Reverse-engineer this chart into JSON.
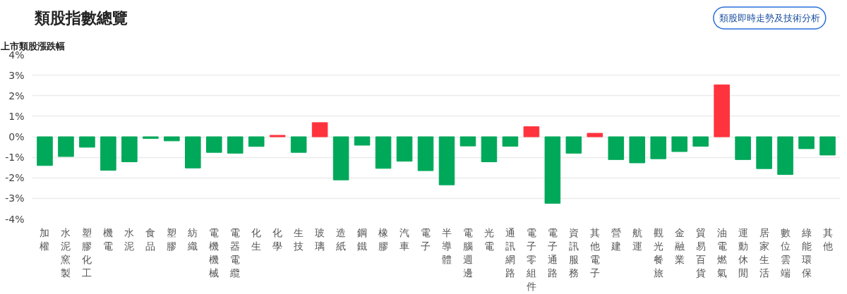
{
  "chart_data": {
    "type": "bar",
    "title": "類股指數總覽",
    "ylabel": "上市類股漲跌幅",
    "annotations": [
      "類股即時走勢及技術分析"
    ],
    "categories": [
      "加權",
      "水泥窯製",
      "塑膠化工",
      "機電",
      "水泥",
      "食品",
      "塑膠",
      "紡織",
      "電機機械",
      "電器電纜",
      "化生",
      "化學",
      "生技",
      "玻璃",
      "造紙",
      "鋼鐵",
      "橡膠",
      "汽車",
      "電子",
      "半導體",
      "電腦週邊",
      "光電",
      "通訊網路",
      "電子零組件",
      "電子通路",
      "資訊服務",
      "其他電子",
      "營建",
      "航運",
      "觀光餐旅",
      "金融業",
      "貿易百貨",
      "油電燃氣",
      "運動休閒",
      "居家生活",
      "數位雲端",
      "綠能環保",
      "其他"
    ],
    "values": [
      -1.4,
      -0.96,
      -0.51,
      -1.63,
      -1.22,
      -0.08,
      -0.2,
      -1.52,
      -0.76,
      -0.8,
      -0.47,
      0.07,
      -0.76,
      0.69,
      -2.1,
      -0.41,
      -1.54,
      -1.19,
      -1.65,
      -2.34,
      -0.45,
      -1.22,
      -0.46,
      0.49,
      -3.24,
      -0.8,
      0.17,
      -1.11,
      -1.27,
      -1.07,
      -0.72,
      -0.46,
      2.53,
      -1.11,
      -1.55,
      -1.84,
      -0.58,
      -0.89
    ],
    "colors": [
      "#00a85a",
      "#00a85a",
      "#00a85a",
      "#00a85a",
      "#00a85a",
      "#00a85a",
      "#00a85a",
      "#00a85a",
      "#00a85a",
      "#00a85a",
      "#00a85a",
      "#ff333d",
      "#00a85a",
      "#ff333d",
      "#00a85a",
      "#00a85a",
      "#00a85a",
      "#00a85a",
      "#00a85a",
      "#00a85a",
      "#00a85a",
      "#00a85a",
      "#00a85a",
      "#ff333d",
      "#00a85a",
      "#00a85a",
      "#ff333d",
      "#00a85a",
      "#00a85a",
      "#00a85a",
      "#00a85a",
      "#00a85a",
      "#ff333d",
      "#00a85a",
      "#00a85a",
      "#00a85a",
      "#00a85a",
      "#00a85a"
    ],
    "ylim": [
      -4,
      4
    ],
    "yticks": [
      {
        "value": -4,
        "label": "-4%"
      },
      {
        "value": -3,
        "label": "-3%"
      },
      {
        "value": -2,
        "label": "-2%"
      },
      {
        "value": -1,
        "label": "-1%"
      },
      {
        "value": 0,
        "label": "0%"
      },
      {
        "value": 1,
        "label": "1%"
      },
      {
        "value": 2,
        "label": "2%"
      },
      {
        "value": 3,
        "label": "3%"
      },
      {
        "value": 4,
        "label": "4%"
      }
    ],
    "grid": "y"
  }
}
